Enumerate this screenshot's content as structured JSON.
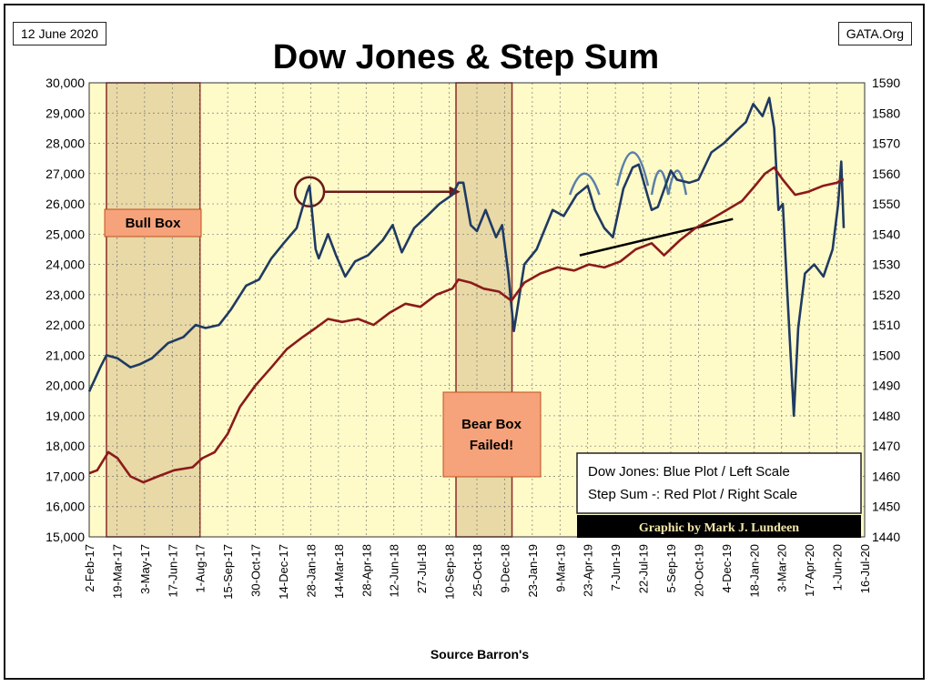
{
  "header": {
    "date": "12 June 2020",
    "source_site": "GATA.Org",
    "title": "Dow Jones & Step Sum"
  },
  "footer": {
    "source": "Source Barron's"
  },
  "annotations": {
    "bull_box": "Bull Box",
    "bear_box_line1": "Bear Box",
    "bear_box_line2": "Failed!",
    "legend_line1": "Dow Jones: Blue Plot / Left Scale",
    "legend_line2": "Step Sum -: Red Plot / Right Scale",
    "credit": "Graphic by Mark J. Lundeen"
  },
  "colors": {
    "plot_bg": "#FFFBC8",
    "box_fill": "#E8D9A6",
    "box_border": "#8B2A2A",
    "dow": "#1F3A63",
    "step": "#8B1A1A",
    "grid": "#777777",
    "label_box": "#F6A27A",
    "credit_bg": "#000000"
  },
  "chart_data": {
    "type": "line",
    "x_ticks": [
      "2-Feb-17",
      "19-Mar-17",
      "3-May-17",
      "17-Jun-17",
      "1-Aug-17",
      "15-Sep-17",
      "30-Oct-17",
      "14-Dec-17",
      "28-Jan-18",
      "14-Mar-18",
      "28-Apr-18",
      "12-Jun-18",
      "27-Jul-18",
      "10-Sep-18",
      "25-Oct-18",
      "9-Dec-18",
      "23-Jan-19",
      "9-Mar-19",
      "23-Apr-19",
      "7-Jun-19",
      "22-Jul-19",
      "5-Sep-19",
      "20-Oct-19",
      "4-Dec-19",
      "18-Jan-20",
      "3-Mar-20",
      "17-Apr-20",
      "1-Jun-20",
      "16-Jul-20"
    ],
    "y_left_ticks": [
      "30,000",
      "29,000",
      "28,000",
      "27,000",
      "26,000",
      "25,000",
      "24,000",
      "23,000",
      "22,000",
      "21,000",
      "20,000",
      "19,000",
      "18,000",
      "17,000",
      "16,000",
      "15,000"
    ],
    "y_right_ticks": [
      "1590",
      "1580",
      "1570",
      "1560",
      "1550",
      "1540",
      "1530",
      "1520",
      "1510",
      "1500",
      "1490",
      "1480",
      "1470",
      "1460",
      "1450",
      "1440"
    ],
    "ylim_left": [
      15000,
      30000
    ],
    "ylim_right": [
      1440,
      1590
    ],
    "boxes": [
      {
        "name": "bull-box",
        "x_start": "2017-03-02",
        "x_end": "2017-08-01"
      },
      {
        "name": "bear-box",
        "x_start": "2018-09-21",
        "x_end": "2018-12-21"
      }
    ],
    "series": [
      {
        "name": "Dow Jones",
        "axis": "left",
        "x": [
          "2017-02-02",
          "2017-02-20",
          "2017-03-02",
          "2017-03-20",
          "2017-04-10",
          "2017-04-25",
          "2017-05-15",
          "2017-06-10",
          "2017-07-05",
          "2017-07-25",
          "2017-08-10",
          "2017-09-01",
          "2017-09-20",
          "2017-10-15",
          "2017-11-05",
          "2017-11-25",
          "2017-12-15",
          "2018-01-05",
          "2018-01-22",
          "2018-01-26",
          "2018-02-05",
          "2018-02-10",
          "2018-02-25",
          "2018-03-10",
          "2018-03-25",
          "2018-04-10",
          "2018-05-01",
          "2018-05-25",
          "2018-06-10",
          "2018-06-25",
          "2018-07-15",
          "2018-08-05",
          "2018-08-25",
          "2018-09-15",
          "2018-09-25",
          "2018-10-03",
          "2018-10-15",
          "2018-10-25",
          "2018-11-08",
          "2018-11-25",
          "2018-12-05",
          "2018-12-15",
          "2018-12-24",
          "2019-01-10",
          "2019-01-30",
          "2019-02-25",
          "2019-03-15",
          "2019-04-05",
          "2019-04-23",
          "2019-05-05",
          "2019-05-20",
          "2019-06-03",
          "2019-06-20",
          "2019-07-05",
          "2019-07-15",
          "2019-08-05",
          "2019-08-15",
          "2019-09-05",
          "2019-09-15",
          "2019-10-05",
          "2019-10-20",
          "2019-11-10",
          "2019-11-30",
          "2019-12-20",
          "2020-01-05",
          "2020-01-17",
          "2020-02-01",
          "2020-02-12",
          "2020-02-20",
          "2020-02-27",
          "2020-03-05",
          "2020-03-12",
          "2020-03-23",
          "2020-03-30",
          "2020-04-10",
          "2020-04-25",
          "2020-05-10",
          "2020-05-25",
          "2020-06-03",
          "2020-06-08",
          "2020-06-12"
        ],
        "values": [
          19800,
          20600,
          21000,
          20900,
          20600,
          20700,
          20900,
          21400,
          21600,
          22000,
          21900,
          22000,
          22500,
          23300,
          23500,
          24200,
          24700,
          25200,
          26400,
          26600,
          24500,
          24200,
          25000,
          24300,
          23600,
          24100,
          24300,
          24800,
          25300,
          24400,
          25200,
          25600,
          26000,
          26300,
          26700,
          26700,
          25300,
          25100,
          25800,
          24900,
          25300,
          23700,
          21800,
          24000,
          24500,
          25800,
          25600,
          26300,
          26600,
          25800,
          25200,
          24900,
          26500,
          27200,
          27300,
          25800,
          25900,
          27100,
          26800,
          26700,
          26800,
          27700,
          28000,
          28400,
          28700,
          29300,
          28900,
          29500,
          28500,
          25800,
          26000,
          23200,
          19000,
          21900,
          23700,
          24000,
          23600,
          24500,
          26000,
          27400,
          25200
        ]
      },
      {
        "name": "Step Sum",
        "axis": "right",
        "x": [
          "2017-02-02",
          "2017-02-15",
          "2017-03-05",
          "2017-03-20",
          "2017-04-10",
          "2017-05-01",
          "2017-05-25",
          "2017-06-20",
          "2017-07-20",
          "2017-08-05",
          "2017-08-25",
          "2017-09-15",
          "2017-10-05",
          "2017-10-30",
          "2017-11-25",
          "2017-12-20",
          "2018-01-15",
          "2018-02-05",
          "2018-02-25",
          "2018-03-20",
          "2018-04-15",
          "2018-05-10",
          "2018-06-05",
          "2018-07-01",
          "2018-07-25",
          "2018-08-20",
          "2018-09-15",
          "2018-09-25",
          "2018-10-15",
          "2018-11-05",
          "2018-11-30",
          "2018-12-20",
          "2019-01-10",
          "2019-02-05",
          "2019-03-05",
          "2019-04-01",
          "2019-04-25",
          "2019-05-20",
          "2019-06-15",
          "2019-07-10",
          "2019-08-05",
          "2019-08-25",
          "2019-09-20",
          "2019-10-15",
          "2019-11-10",
          "2019-12-05",
          "2019-12-30",
          "2020-01-20",
          "2020-02-05",
          "2020-02-20",
          "2020-03-05",
          "2020-03-25",
          "2020-04-15",
          "2020-05-10",
          "2020-06-01",
          "2020-06-08",
          "2020-06-12"
        ],
        "values": [
          1461,
          1462,
          1468,
          1466,
          1460,
          1458,
          1460,
          1462,
          1463,
          1466,
          1468,
          1474,
          1483,
          1490,
          1496,
          1502,
          1506,
          1509,
          1512,
          1511,
          1512,
          1510,
          1514,
          1517,
          1516,
          1520,
          1522,
          1525,
          1524,
          1522,
          1521,
          1518,
          1524,
          1527,
          1529,
          1528,
          1530,
          1529,
          1531,
          1535,
          1537,
          1533,
          1538,
          1542,
          1545,
          1548,
          1551,
          1556,
          1560,
          1562,
          1558,
          1553,
          1554,
          1556,
          1557,
          1558,
          1558
        ]
      }
    ]
  }
}
